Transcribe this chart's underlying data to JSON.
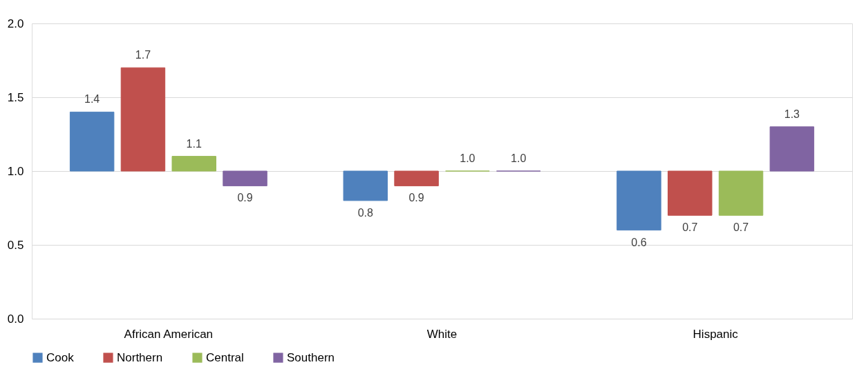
{
  "chart_data": {
    "type": "bar",
    "categories": [
      "African American",
      "White",
      "Hispanic"
    ],
    "series": [
      {
        "name": "Cook",
        "color": "#4f81bd",
        "base": [
          1,
          1,
          1
        ],
        "values": [
          0.4,
          -0.2,
          -0.4
        ],
        "value_labels": [
          "1.4",
          "0.8",
          "0.6"
        ]
      },
      {
        "name": "Northern",
        "color": "#c0504d",
        "base": [
          1,
          1,
          1
        ],
        "values": [
          0.7,
          -0.1,
          -0.3
        ],
        "value_labels": [
          "1.7",
          "0.9",
          "0.7"
        ]
      },
      {
        "name": "Central",
        "color": "#9bbb59",
        "base": [
          1,
          1,
          1
        ],
        "values": [
          0.1,
          0,
          -0.3
        ],
        "value_labels": [
          "1.1",
          "1.0",
          "0.7"
        ]
      },
      {
        "name": "Southern",
        "color": "#8064a2",
        "base": [
          1,
          1,
          1
        ],
        "values": [
          -0.1,
          0,
          0.3
        ],
        "value_labels": [
          "0.9",
          "1.0",
          "1.3"
        ]
      }
    ],
    "ylim": [
      0,
      2
    ],
    "yticks": [
      {
        "value": 0,
        "label": "0.0"
      },
      0.5,
      {
        "value": 1,
        "label": "1.0"
      },
      1.5,
      {
        "value": 2,
        "label": "2.0"
      }
    ],
    "grid": "y",
    "legend": "bottom"
  }
}
